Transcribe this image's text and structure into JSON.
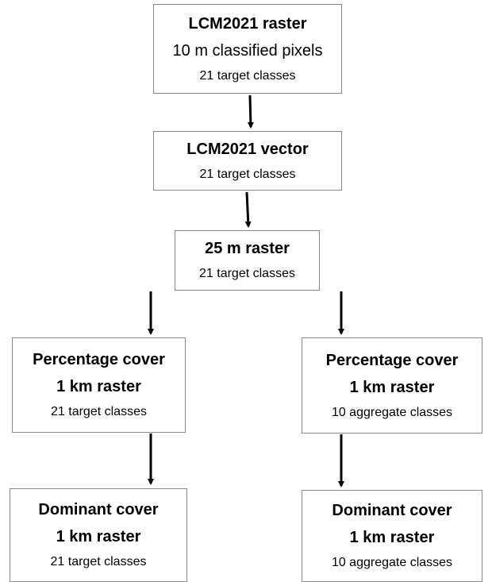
{
  "nodes": [
    {
      "title": [
        "LCM2021 raster"
      ],
      "subtitle": "10 m classified pixels",
      "detail": "21 target classes"
    },
    {
      "title": [
        "LCM2021 vector"
      ],
      "detail": "21 target classes"
    },
    {
      "title": [
        "25 m raster"
      ],
      "detail": "21 target classes"
    },
    {
      "title": [
        "Percentage cover",
        "1 km raster"
      ],
      "detail": "21 target classes"
    },
    {
      "title": [
        "Percentage cover",
        "1 km raster"
      ],
      "detail": "10 aggregate classes"
    },
    {
      "title": [
        "Dominant cover",
        "1 km raster"
      ],
      "detail": "21 target classes"
    },
    {
      "title": [
        "Dominant cover",
        "1 km raster"
      ],
      "detail": "10 aggregate classes"
    }
  ]
}
